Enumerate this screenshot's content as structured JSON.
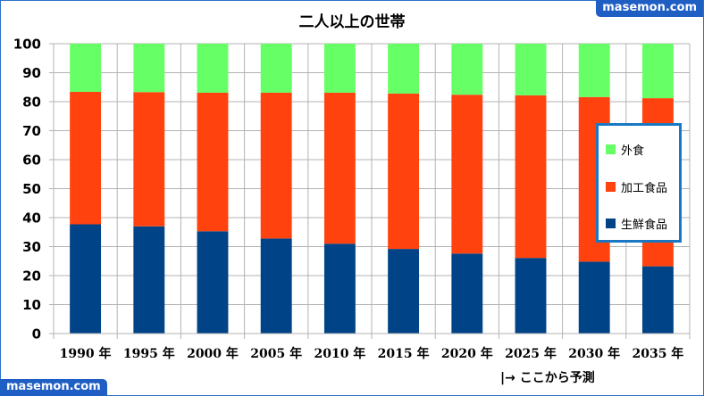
{
  "watermark_top": "masemon.com",
  "watermark_bottom": "masemon.com",
  "forecast_note": "|→ ここから予測",
  "chart_data": {
    "type": "bar",
    "stacked": true,
    "title": "二人以上の世帯",
    "xlabel": "",
    "ylabel": "",
    "categories": [
      "1990 年",
      "1995 年",
      "2000 年",
      "2005 年",
      "2010 年",
      "2015 年",
      "2020 年",
      "2025 年",
      "2030 年",
      "2035 年"
    ],
    "ylim": [
      0,
      100
    ],
    "yticks": [
      0,
      10,
      20,
      30,
      40,
      50,
      60,
      70,
      80,
      90,
      100
    ],
    "grid": true,
    "legend_position": "right",
    "series": [
      {
        "name": "生鮮食品",
        "color": "#004386",
        "values": [
          37.7,
          37.0,
          35.3,
          32.8,
          31.0,
          29.2,
          27.6,
          26.1,
          24.8,
          23.2
        ]
      },
      {
        "name": "加工食品",
        "color": "#ff420e",
        "values": [
          45.7,
          46.3,
          47.8,
          50.3,
          52.1,
          53.6,
          54.8,
          56.1,
          56.8,
          58.0
        ]
      },
      {
        "name": "外食",
        "color": "#66ff66",
        "values": [
          16.6,
          16.7,
          16.9,
          16.9,
          16.9,
          17.2,
          17.6,
          17.8,
          18.4,
          18.8
        ]
      }
    ]
  }
}
